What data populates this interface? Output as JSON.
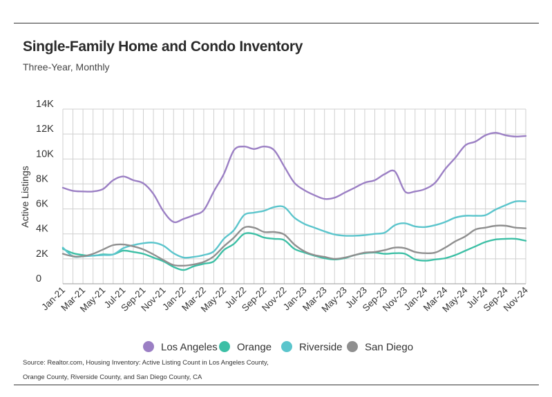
{
  "header": {
    "title": "Single-Family Home and Condo Inventory",
    "subtitle": "Three-Year, Monthly"
  },
  "footer": {
    "source_line1": "Source: Realtor.com, Housing Inventory: Active Listing Count in Los Angeles County,",
    "source_line2": "Orange County, Riverside County, and San Diego County, CA"
  },
  "chart_data": {
    "type": "line",
    "title": "Single-Family Home and Condo Inventory",
    "subtitle": "Three-Year, Monthly",
    "ylabel": "Active Listings",
    "xlabel": "",
    "ylim": [
      0,
      14000
    ],
    "yticks": [
      0,
      2000,
      4000,
      6000,
      8000,
      10000,
      12000,
      14000
    ],
    "ytick_labels": [
      "0",
      "2K",
      "4K",
      "6K",
      "8K",
      "10K",
      "12K",
      "14K"
    ],
    "grid": true,
    "legend_position": "bottom",
    "x": [
      "Jan-21",
      "Feb-21",
      "Mar-21",
      "Apr-21",
      "May-21",
      "Jun-21",
      "Jul-21",
      "Aug-21",
      "Sep-21",
      "Oct-21",
      "Nov-21",
      "Dec-21",
      "Jan-22",
      "Feb-22",
      "Mar-22",
      "Apr-22",
      "May-22",
      "Jun-22",
      "Jul-22",
      "Aug-22",
      "Sep-22",
      "Oct-22",
      "Nov-22",
      "Dec-22",
      "Jan-23",
      "Feb-23",
      "Mar-23",
      "Apr-23",
      "May-23",
      "Jun-23",
      "Jul-23",
      "Aug-23",
      "Sep-23",
      "Oct-23",
      "Nov-23",
      "Dec-23",
      "Jan-24",
      "Feb-24",
      "Mar-24",
      "Apr-24",
      "May-24",
      "Jun-24",
      "Jul-24",
      "Aug-24",
      "Sep-24",
      "Oct-24",
      "Nov-24"
    ],
    "xtick_labels": [
      "Jan-21",
      "Mar-21",
      "May-21",
      "Jul-21",
      "Sep-21",
      "Nov-21",
      "Jan-22",
      "Mar-22",
      "May-22",
      "Jul-22",
      "Sep-22",
      "Nov-22",
      "Jan-23",
      "Mar-23",
      "May-23",
      "Jul-23",
      "Sep-23",
      "Nov-23",
      "Jan-24",
      "Mar-24",
      "May-24",
      "Jul-24",
      "Sep-24",
      "Nov-24"
    ],
    "series": [
      {
        "name": "Los Angeles",
        "color": "#9b7fc4",
        "values": [
          7700,
          7450,
          7400,
          7400,
          7600,
          8300,
          8600,
          8300,
          8050,
          7200,
          5800,
          4950,
          5200,
          5500,
          5900,
          7400,
          8800,
          10700,
          11000,
          10800,
          11000,
          10700,
          9400,
          8100,
          7500,
          7100,
          6800,
          6900,
          7300,
          7700,
          8100,
          8300,
          8800,
          9000,
          7400,
          7400,
          7600,
          8100,
          9200,
          10100,
          11100,
          11400,
          11900,
          12100,
          11900,
          11800,
          11850
        ]
      },
      {
        "name": "Orange",
        "color": "#3cbfa5",
        "values": [
          2800,
          2450,
          2300,
          2250,
          2350,
          2350,
          2650,
          2550,
          2400,
          2100,
          1800,
          1350,
          1100,
          1400,
          1600,
          1800,
          2700,
          3200,
          4000,
          4000,
          3700,
          3600,
          3500,
          2800,
          2500,
          2250,
          2050,
          1950,
          2050,
          2300,
          2450,
          2500,
          2400,
          2450,
          2400,
          1950,
          1850,
          1950,
          2050,
          2300,
          2650,
          3000,
          3350,
          3550,
          3600,
          3600,
          3450
        ]
      },
      {
        "name": "Riverside",
        "color": "#5bc5cc",
        "values": [
          2900,
          2200,
          2200,
          2250,
          2300,
          2350,
          2850,
          3100,
          3250,
          3300,
          3050,
          2450,
          2100,
          2150,
          2300,
          2600,
          3600,
          4300,
          5500,
          5700,
          5850,
          6150,
          6150,
          5300,
          4800,
          4500,
          4200,
          3950,
          3850,
          3850,
          3900,
          4000,
          4100,
          4700,
          4850,
          4600,
          4550,
          4700,
          4950,
          5300,
          5450,
          5450,
          5500,
          5950,
          6300,
          6600,
          6600
        ]
      },
      {
        "name": "San Diego",
        "color": "#8f8f8f",
        "values": [
          2400,
          2200,
          2200,
          2400,
          2750,
          3100,
          3150,
          3000,
          2750,
          2350,
          1900,
          1500,
          1450,
          1550,
          1750,
          2200,
          3000,
          3700,
          4500,
          4500,
          4150,
          4150,
          3950,
          3150,
          2600,
          2300,
          2150,
          2000,
          2100,
          2300,
          2500,
          2550,
          2700,
          2900,
          2850,
          2550,
          2450,
          2500,
          2900,
          3400,
          3800,
          4350,
          4500,
          4650,
          4650,
          4500,
          4450
        ]
      }
    ]
  }
}
